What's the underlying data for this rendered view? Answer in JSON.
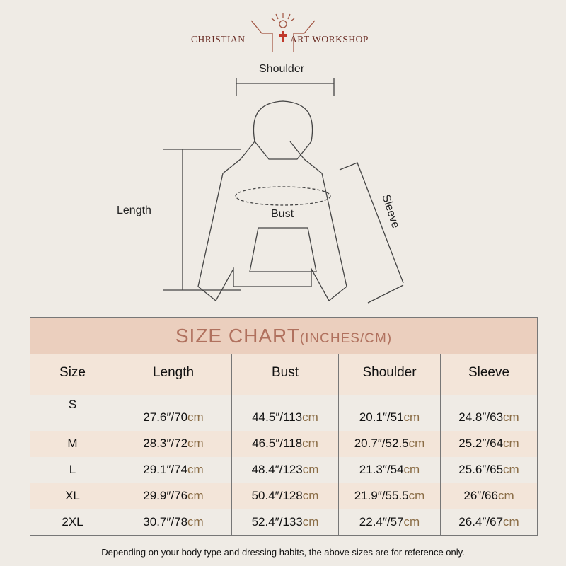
{
  "brand": {
    "left": "CHRISTIAN",
    "right": "ART WORKSHOP"
  },
  "diagram": {
    "shoulder": "Shoulder",
    "length": "Length",
    "bust": "Bust",
    "sleeve": "Sleeve"
  },
  "table": {
    "title": "SIZE CHART",
    "title_unit": "(INCHES/CM)",
    "headers": [
      "Size",
      "Length",
      "Bust",
      "Shoulder",
      "Sleeve"
    ],
    "rows": [
      {
        "size": "S",
        "cells": [
          [
            "27.6″/70",
            "cm"
          ],
          [
            "44.5″/113",
            "cm"
          ],
          [
            "20.1″/51",
            "cm"
          ],
          [
            "24.8″/63",
            "cm"
          ]
        ]
      },
      {
        "size": "M",
        "cells": [
          [
            "28.3″/72",
            "cm"
          ],
          [
            "46.5″/118",
            "cm"
          ],
          [
            "20.7″/52.5",
            "cm"
          ],
          [
            "25.2″/64",
            "cm"
          ]
        ]
      },
      {
        "size": "L",
        "cells": [
          [
            "29.1″/74",
            "cm"
          ],
          [
            "48.4″/123",
            "cm"
          ],
          [
            "21.3″/54",
            "cm"
          ],
          [
            "25.6″/65",
            "cm"
          ]
        ]
      },
      {
        "size": "XL",
        "cells": [
          [
            "29.9″/76",
            "cm"
          ],
          [
            "50.4″/128",
            "cm"
          ],
          [
            "21.9″/55.5",
            "cm"
          ],
          [
            "26″/66",
            "cm"
          ]
        ]
      },
      {
        "size": "2XL",
        "cells": [
          [
            "30.7″/78",
            "cm"
          ],
          [
            "52.4″/133",
            "cm"
          ],
          [
            "22.4″/57",
            "cm"
          ],
          [
            "26.4″/67",
            "cm"
          ]
        ]
      }
    ]
  },
  "note": "Depending on your body type and dressing habits, the above sizes are for reference only.",
  "colors": {
    "header_bg": "#ebcfbe",
    "title": "#b0715e",
    "alt_row": "#f3e5d9",
    "cm": "#8a6c45",
    "brand": "#6b2e26"
  }
}
